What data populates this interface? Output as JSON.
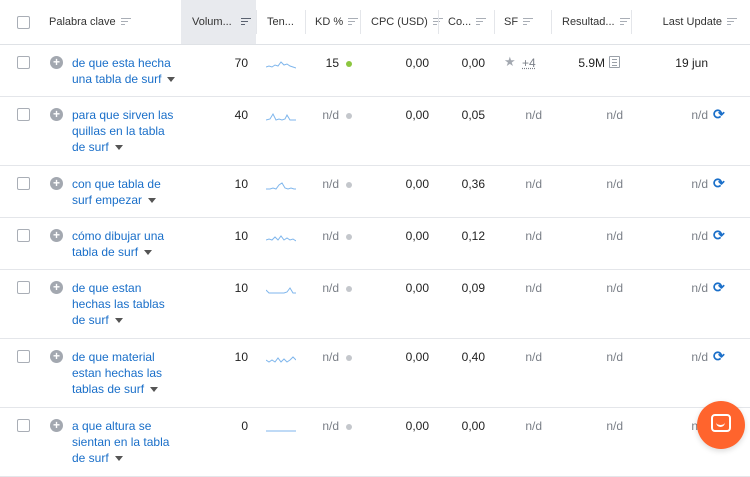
{
  "colors": {
    "link": "#1a6fc9",
    "kd_green": "#8cc63f",
    "kd_na": "#c4c7cc",
    "trend": "#7fb6ec",
    "chat": "#ff642d"
  },
  "header": {
    "keyword": "Palabra clave",
    "volume": "Volum...",
    "trend": "Ten...",
    "kd": "KD %",
    "cpc": "CPC (USD)",
    "competition": "Co...",
    "sf": "SF",
    "results": "Resultad...",
    "last_update": "Last Update"
  },
  "rows": [
    {
      "keyword": "de que esta hecha una tabla de surf",
      "volume": "70",
      "kd": "15",
      "cpc": "0,00",
      "competition": "0,00",
      "sf": "+4",
      "results": "5.9M",
      "last_update": "19 jun"
    },
    {
      "keyword": "para que sirven las quillas en la tabla de surf",
      "volume": "40",
      "kd": "n/d",
      "cpc": "0,00",
      "competition": "0,05",
      "sf": "n/d",
      "results": "n/d",
      "last_update": "n/d"
    },
    {
      "keyword": "con que tabla de surf empezar",
      "volume": "10",
      "kd": "n/d",
      "cpc": "0,00",
      "competition": "0,36",
      "sf": "n/d",
      "results": "n/d",
      "last_update": "n/d"
    },
    {
      "keyword": "cómo dibujar una tabla de surf",
      "volume": "10",
      "kd": "n/d",
      "cpc": "0,00",
      "competition": "0,12",
      "sf": "n/d",
      "results": "n/d",
      "last_update": "n/d"
    },
    {
      "keyword": "de que estan hechas las tablas de surf",
      "volume": "10",
      "kd": "n/d",
      "cpc": "0,00",
      "competition": "0,09",
      "sf": "n/d",
      "results": "n/d",
      "last_update": "n/d"
    },
    {
      "keyword": "de que material estan hechas las tablas de surf",
      "volume": "10",
      "kd": "n/d",
      "cpc": "0,00",
      "competition": "0,40",
      "sf": "n/d",
      "results": "n/d",
      "last_update": "n/d"
    },
    {
      "keyword": "a que altura se sientan en la tabla de surf",
      "volume": "0",
      "kd": "n/d",
      "cpc": "0,00",
      "competition": "0,00",
      "sf": "n/d",
      "results": "n/d",
      "last_update": "n/d"
    }
  ]
}
